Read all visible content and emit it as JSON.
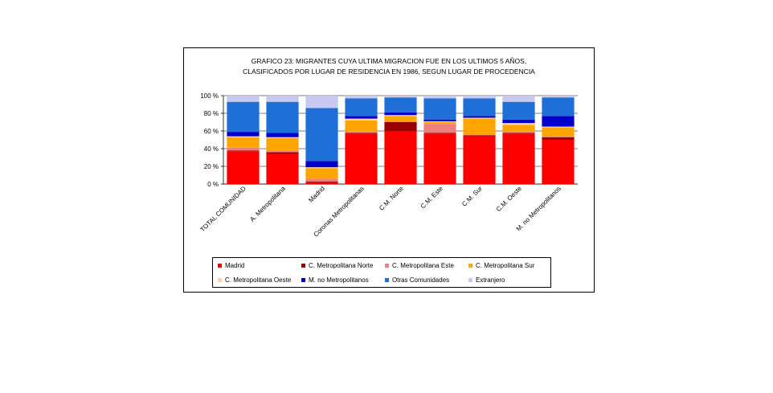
{
  "chart_data": {
    "type": "bar",
    "stacked": true,
    "percent": true,
    "title_lines": [
      "GRAFICO 23: MIGRANTES CUYA ULTIMA MIGRACION FUE EN LOS ULTIMOS 5 AÑOS,",
      "CLASIFICADOS POR LUGAR DE RESIDENCIA EN 1986, SEGUN LUGAR DE PROCEDENCIA"
    ],
    "xlabel": "",
    "ylabel": "",
    "ylim": [
      0,
      100
    ],
    "yticks": [
      "0 %",
      "20 %",
      "40 %",
      "60 %",
      "80 %",
      "100 %"
    ],
    "grid": true,
    "legend_position": "bottom",
    "categories": [
      "TOTAL COMUNIDAD",
      "A. Metropolitana",
      "Madrid",
      "Coronas Metropolitanas",
      "C.M. Norte",
      "C.M. Este",
      "C.M. Sur",
      "C.M. Oeste",
      "M. no Metropolitanos"
    ],
    "series": [
      {
        "name": "Madrid",
        "color": "#ff0000",
        "values": [
          37,
          34,
          2,
          57,
          60,
          57,
          54,
          57,
          50
        ]
      },
      {
        "name": "C. Metropolitana Norte",
        "color": "#990000",
        "values": [
          1,
          2,
          1,
          1,
          10,
          1,
          1,
          1,
          3
        ]
      },
      {
        "name": "C. Metropolitana Este",
        "color": "#f08080",
        "values": [
          3,
          2,
          3,
          1,
          1,
          10,
          1,
          1,
          1
        ]
      },
      {
        "name": "C. Metropolitana Sur",
        "color": "#ffa500",
        "values": [
          12,
          14,
          12,
          13,
          6,
          2,
          18,
          8,
          10
        ]
      },
      {
        "name": "C. Metropolitana Oeste",
        "color": "#ffd3a0",
        "values": [
          1,
          1,
          1,
          2,
          1,
          1,
          1,
          2,
          1
        ]
      },
      {
        "name": "M. no Metropolitanos",
        "color": "#0000cc",
        "values": [
          5,
          5,
          7,
          3,
          3,
          2,
          2,
          4,
          12
        ]
      },
      {
        "name": "Otras Comunidades",
        "color": "#1f6fd8",
        "values": [
          34,
          35,
          60,
          20,
          17,
          24,
          20,
          20,
          21
        ]
      },
      {
        "name": "Extranjero",
        "color": "#c8c8f0",
        "values": [
          7,
          7,
          14,
          3,
          2,
          3,
          3,
          7,
          2
        ]
      }
    ]
  }
}
